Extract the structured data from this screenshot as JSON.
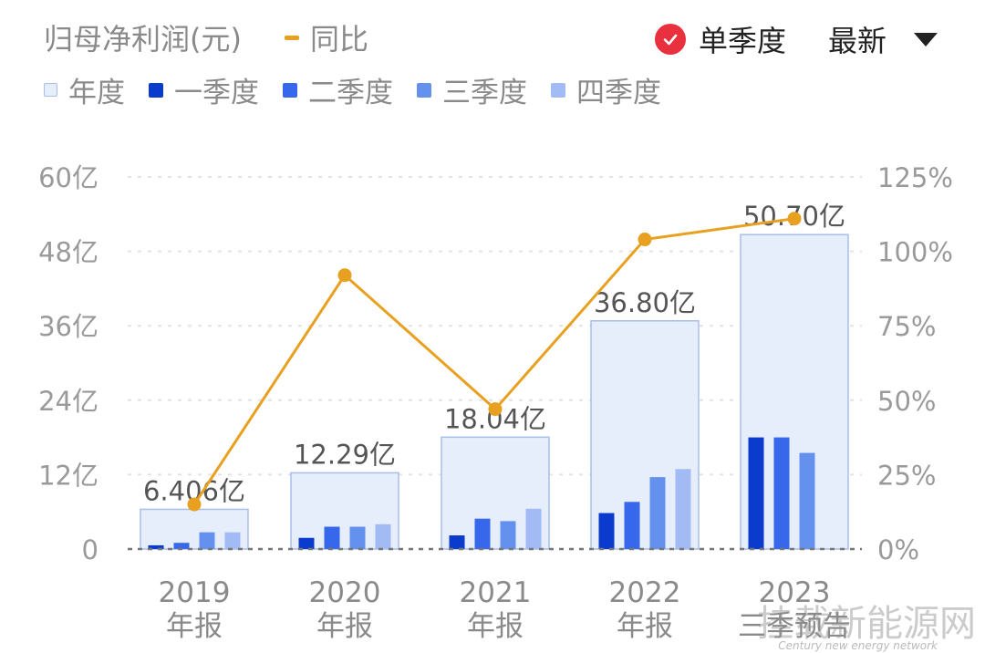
{
  "header": {
    "title": "归母净利润(元)",
    "yoy_label": "同比",
    "single_quarter_label": "单季度",
    "latest_label": "最新"
  },
  "legend": {
    "items": [
      {
        "label": "年度",
        "color": "#e6edfb"
      },
      {
        "label": "一季度",
        "color": "#0a3bcc"
      },
      {
        "label": "二季度",
        "color": "#3768eb"
      },
      {
        "label": "三季度",
        "color": "#6591ee"
      },
      {
        "label": "四季度",
        "color": "#a3bbf4"
      }
    ]
  },
  "watermark": {
    "line1": "挂载新能源网",
    "line2": "Century new energy network"
  },
  "chart_data": {
    "type": "bar",
    "categories": [
      "2019|年报",
      "2020|年报",
      "2021|年报",
      "2022|年报",
      "2023|三季预告"
    ],
    "annual_values": [
      6.406,
      12.29,
      18.04,
      36.8,
      50.7
    ],
    "annual_labels": [
      "6.406亿",
      "12.29亿",
      "18.04亿",
      "36.80亿",
      "50.70亿"
    ],
    "series": [
      {
        "name": "一季度",
        "values": [
          0.6,
          1.8,
          2.2,
          5.8,
          18.0
        ],
        "color": "#0a3bcc"
      },
      {
        "name": "二季度",
        "values": [
          1.0,
          3.6,
          4.9,
          7.6,
          18.0
        ],
        "color": "#3768eb"
      },
      {
        "name": "三季度",
        "values": [
          2.7,
          3.6,
          4.5,
          11.6,
          15.5
        ],
        "color": "#6591ee"
      },
      {
        "name": "四季度",
        "values": [
          2.7,
          4.0,
          6.5,
          12.9,
          null
        ],
        "color": "#a3bbf4"
      }
    ],
    "yoy": {
      "name": "同比",
      "values": [
        15,
        92,
        47,
        104,
        111
      ],
      "color": "#e8a020"
    },
    "y_left": {
      "ticks": [
        "0",
        "12亿",
        "24亿",
        "36亿",
        "48亿",
        "60亿"
      ],
      "ylim": [
        0,
        60
      ]
    },
    "y_right": {
      "ticks": [
        "0%",
        "25%",
        "50%",
        "75%",
        "100%",
        "125%"
      ],
      "ylim": [
        0,
        125
      ]
    },
    "colors": {
      "annual_fill": "#e6edfb",
      "annual_stroke": "#a9bde9",
      "line": "#e8a020",
      "grid": "#e3e3e3",
      "zero": "#777777"
    },
    "grid": true
  }
}
